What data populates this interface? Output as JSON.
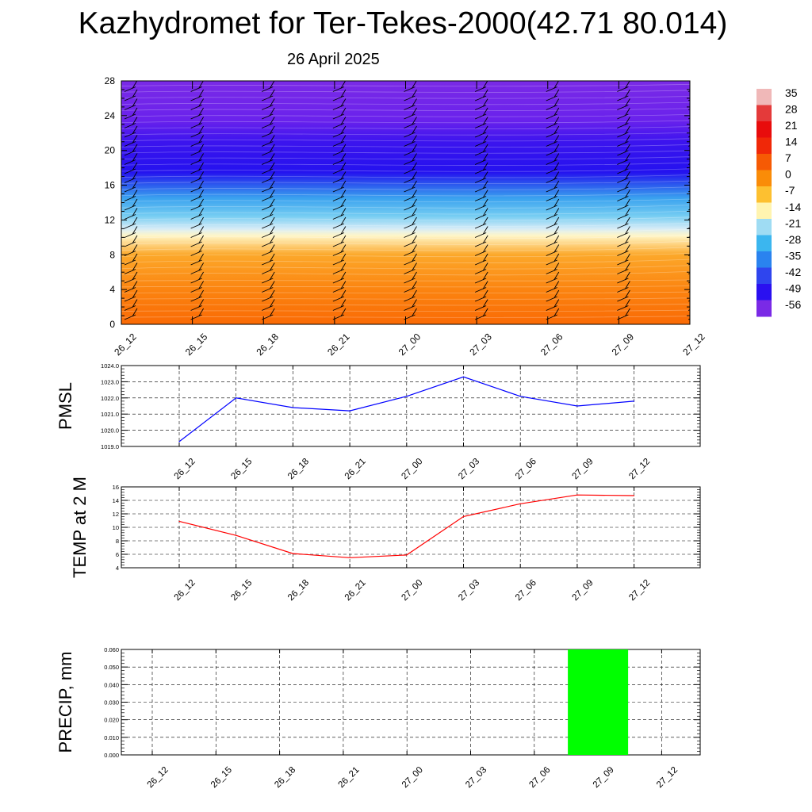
{
  "title": "Kazhydromet for Ter-Tekes-2000(42.71 80.014)",
  "subtitle": "26 April 2025",
  "chart_data": [
    {
      "type": "heatmap",
      "description_hidden": "",
      "x_ticks": [
        "26_12",
        "26_15",
        "26_18",
        "26_21",
        "27_00",
        "27_03",
        "27_06",
        "27_09",
        "27_12"
      ],
      "y_ticks": [
        "0",
        "4",
        "8",
        "12",
        "16",
        "20",
        "24",
        "28"
      ],
      "ylim": [
        0,
        28
      ],
      "colorbar_labels": [
        "35",
        "28",
        "21",
        "14",
        "7",
        "0",
        "-7",
        "-14",
        "-21",
        "-28",
        "-35",
        "-42",
        "-49",
        "-56"
      ],
      "colorbar_colors": [
        "#f0b8b8",
        "#e43a3a",
        "#e80c0c",
        "#f02808",
        "#f65a04",
        "#fa8c08",
        "#fdc030",
        "#fff4b0",
        "#9fdcf3",
        "#3bb6ef",
        "#2a83ef",
        "#2f45ee",
        "#2a10f0",
        "#7a2ae6"
      ],
      "layers": [
        {
          "z": 0,
          "color": "#fa6a05"
        },
        {
          "z": 4,
          "color": "#fb8410"
        },
        {
          "z": 8,
          "color": "#fca82a"
        },
        {
          "z": 10.2,
          "color": "#fff6c8"
        },
        {
          "z": 11,
          "color": "#d6ecf7"
        },
        {
          "z": 12.5,
          "color": "#74ccf2"
        },
        {
          "z": 14.5,
          "color": "#3aa2ef"
        },
        {
          "z": 16,
          "color": "#2c5cee"
        },
        {
          "z": 17.5,
          "color": "#2412ef"
        },
        {
          "z": 21,
          "color": "#3c14ee"
        },
        {
          "z": 23.5,
          "color": "#6a22ec"
        },
        {
          "z": 28,
          "color": "#7a2ae6"
        }
      ]
    },
    {
      "type": "line",
      "ylabel": "PMSL",
      "x": [
        "26_12",
        "26_15",
        "26_18",
        "26_21",
        "27_00",
        "27_03",
        "27_06",
        "27_09",
        "27_12"
      ],
      "y": [
        1019.3,
        1022.0,
        1021.4,
        1021.2,
        1022.1,
        1023.3,
        1022.1,
        1021.5,
        1021.8
      ],
      "ylim": [
        1019.0,
        1024.0
      ],
      "y_ticks": [
        "1019.0",
        "1020.0",
        "1021.0",
        "1022.0",
        "1023.0",
        "1024.0"
      ],
      "color": "#0000ff",
      "grid": true
    },
    {
      "type": "line",
      "ylabel": "TEMP at 2 M",
      "x": [
        "26_12",
        "26_15",
        "26_18",
        "26_21",
        "27_00",
        "27_03",
        "27_06",
        "27_09",
        "27_12"
      ],
      "y": [
        10.9,
        8.8,
        6.1,
        5.5,
        5.9,
        11.6,
        13.5,
        14.8,
        14.7
      ],
      "ylim": [
        4,
        16
      ],
      "y_ticks": [
        "4",
        "6",
        "8",
        "10",
        "12",
        "14",
        "16"
      ],
      "color": "#ff0000",
      "grid": true
    },
    {
      "type": "bar",
      "ylabel": "PRECIP, mm",
      "categories": [
        "26_12",
        "26_15",
        "26_18",
        "26_21",
        "27_00",
        "27_03",
        "27_06",
        "27_09",
        "27_12"
      ],
      "values": [
        0,
        0,
        0,
        0,
        0,
        0,
        0,
        0.06,
        0
      ],
      "ylim": [
        0,
        0.06
      ],
      "y_ticks": [
        "0.000",
        "0.010",
        "0.020",
        "0.030",
        "0.040",
        "0.050",
        "0.060"
      ],
      "color": "#00ff00",
      "grid": true
    }
  ]
}
